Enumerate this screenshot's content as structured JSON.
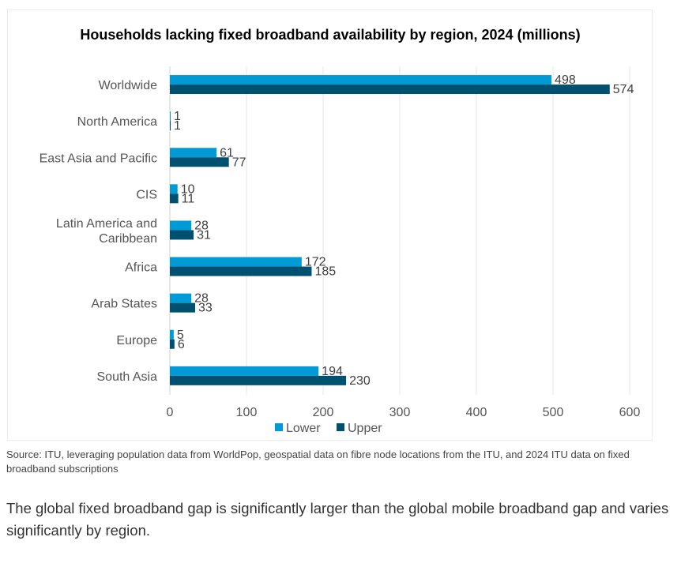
{
  "chart_data": {
    "type": "bar",
    "orientation": "horizontal",
    "title": "Households lacking fixed broadband availability by region, 2024 (millions)",
    "categories": [
      "Worldwide",
      "North America",
      "East Asia and Pacific",
      "CIS",
      "Latin America and Caribbean",
      "Africa",
      "Arab States",
      "Europe",
      "South Asia"
    ],
    "series": [
      {
        "name": "Lower",
        "color": "#009ad6",
        "values": [
          498,
          1,
          61,
          10,
          28,
          172,
          28,
          5,
          194
        ]
      },
      {
        "name": "Upper",
        "color": "#00506f",
        "values": [
          574,
          1,
          77,
          11,
          31,
          185,
          33,
          6,
          230
        ]
      }
    ],
    "xlim": [
      0,
      600
    ],
    "xticks": [
      0,
      100,
      200,
      300,
      400,
      500,
      600
    ],
    "grid": true,
    "legend": "bottom"
  },
  "source": "Source: ITU, leveraging population data from WorldPop, geospatial data on fibre node locations from the ITU, and 2024 ITU data on fixed broadband subscriptions",
  "caption": "The global fixed broadband gap is significantly larger than the global mobile broadband gap and varies significantly by region."
}
